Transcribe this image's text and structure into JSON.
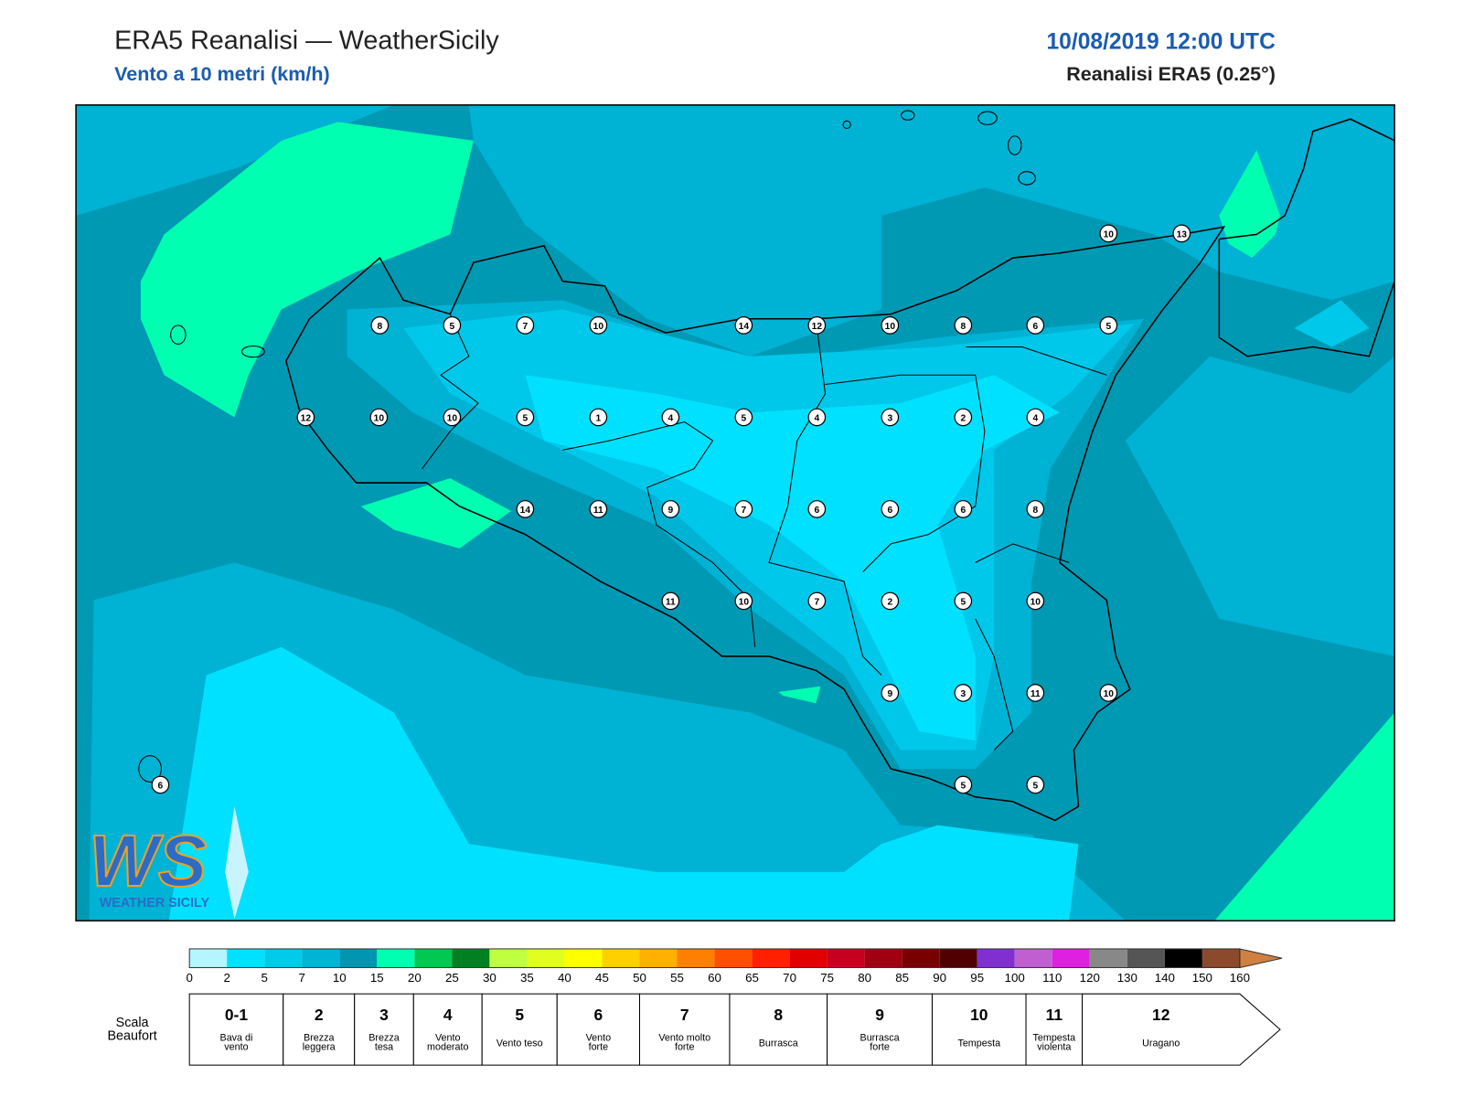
{
  "header": {
    "title": "ERA5 Reanalisi — WeatherSicily",
    "subtitle": "Vento a 10 metri (km/h)",
    "datetime": "10/08/2019 12:00 UTC",
    "model": "Reanalisi ERA5 (0.25°)"
  },
  "map": {
    "stations": [
      10,
      13,
      8,
      5,
      7,
      10,
      14,
      12,
      10,
      8,
      6,
      5,
      12,
      10,
      10,
      5,
      1,
      4,
      5,
      4,
      3,
      2,
      4,
      14,
      11,
      9,
      7,
      6,
      6,
      6,
      8,
      11,
      10,
      7,
      2,
      5,
      10,
      9,
      3,
      11,
      10,
      5,
      5,
      6
    ]
  },
  "logo": {
    "mark": "WS",
    "text": "WEATHER SICILY"
  },
  "color_scale": {
    "ticks": [
      0,
      2,
      5,
      7,
      10,
      15,
      20,
      25,
      30,
      35,
      40,
      45,
      50,
      55,
      60,
      65,
      70,
      75,
      80,
      85,
      90,
      95,
      100,
      110,
      120,
      130,
      140,
      150,
      160
    ],
    "colors": [
      "#b4f5ff",
      "#00e1ff",
      "#00cbeb",
      "#00b4d6",
      "#0096b0",
      "#00ffb0",
      "#00c850",
      "#008020",
      "#c0ff40",
      "#e0ff20",
      "#ffff00",
      "#ffd000",
      "#ffb000",
      "#ff8000",
      "#ff5000",
      "#ff2000",
      "#e00000",
      "#c80020",
      "#a00010",
      "#780000",
      "#500000",
      "#8030d0",
      "#c060d0",
      "#e020e0",
      "#888888",
      "#555555",
      "#000000",
      "#8b4a2b"
    ],
    "arrow_color": "#d08040"
  },
  "beaufort": {
    "label": [
      "Scala",
      "Beaufort"
    ],
    "levels": [
      {
        "force": "0-1",
        "desc": [
          "Bava di",
          "vento"
        ]
      },
      {
        "force": 2,
        "desc": [
          "Brezza",
          "leggera"
        ]
      },
      {
        "force": 3,
        "desc": [
          "Brezza",
          "tesa"
        ]
      },
      {
        "force": 4,
        "desc": [
          "Vento",
          "moderato"
        ]
      },
      {
        "force": 5,
        "desc": [
          "Vento teso"
        ]
      },
      {
        "force": 6,
        "desc": [
          "Vento",
          "forte"
        ]
      },
      {
        "force": 7,
        "desc": [
          "Vento molto",
          "forte"
        ]
      },
      {
        "force": 8,
        "desc": [
          "Burrasca"
        ]
      },
      {
        "force": 9,
        "desc": [
          "Burrasca",
          "forte"
        ]
      },
      {
        "force": 10,
        "desc": [
          "Tempesta"
        ]
      },
      {
        "force": 11,
        "desc": [
          "Tempesta",
          "violenta"
        ]
      },
      {
        "force": 12,
        "desc": [
          "Uragano"
        ]
      }
    ]
  }
}
